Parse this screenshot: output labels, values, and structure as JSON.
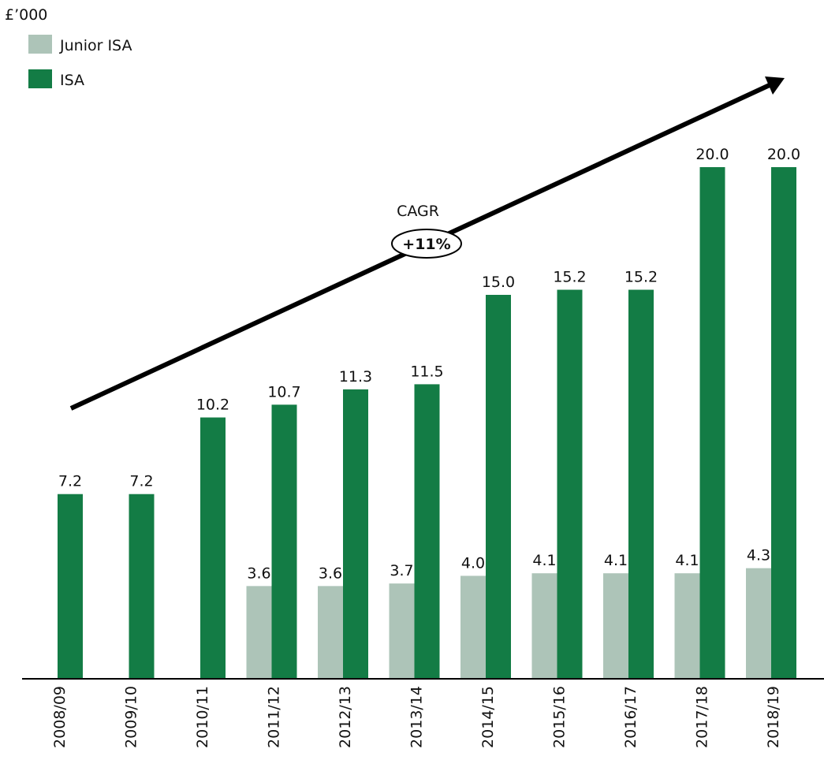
{
  "chart_data": {
    "type": "bar",
    "unit_label": "£’000",
    "annotation": "CAGR",
    "annotation_value": "+11%",
    "categories": [
      "2008/09",
      "2009/10",
      "2010/11",
      "2011/12",
      "2012/13",
      "2013/14",
      "2014/15",
      "2015/16",
      "2016/17",
      "2017/18",
      "2018/19"
    ],
    "series": [
      {
        "name": "Junior ISA",
        "color": "#adc4b8",
        "values": [
          null,
          null,
          null,
          3.6,
          3.6,
          3.7,
          4.0,
          4.1,
          4.1,
          4.1,
          4.3
        ],
        "value_labels": [
          null,
          null,
          null,
          "3.6",
          "3.6",
          "3.7",
          "4.0",
          "4.1",
          "4.1",
          "4.1",
          "4.3"
        ]
      },
      {
        "name": "ISA",
        "color": "#137c45",
        "values": [
          7.2,
          7.2,
          10.2,
          10.7,
          11.3,
          11.5,
          15.0,
          15.2,
          15.2,
          20.0,
          20.0
        ],
        "value_labels": [
          "7.2",
          "7.2",
          "10.2",
          "10.7",
          "11.3",
          "11.5",
          "15.0",
          "15.2",
          "15.2",
          "20.0",
          "20.0"
        ]
      }
    ]
  }
}
